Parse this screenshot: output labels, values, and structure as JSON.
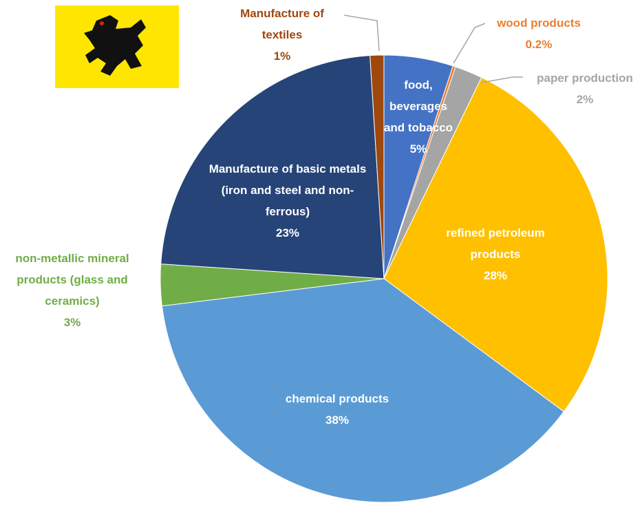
{
  "chart_data": {
    "type": "pie",
    "categories": [
      "food, beverages and tobacco",
      "wood products",
      "paper production",
      "refined petroleum products",
      "chemical products",
      "non-metallic mineral products  (glass and ceramics)",
      "Manufacture of basic metals (iron and steel and non-ferrous)",
      "Manufacture of textiles"
    ],
    "values": [
      5,
      0.2,
      2,
      28,
      38,
      3,
      23,
      1
    ],
    "value_labels": [
      "5%",
      "0.2%",
      "2%",
      "28%",
      "38%",
      "3%",
      "23%",
      "1%"
    ],
    "colors": [
      "#4472c4",
      "#ed7d31",
      "#a5a5a5",
      "#ffc000",
      "#5b9bd5",
      "#70ad47",
      "#264478",
      "#9e480e"
    ]
  }
}
